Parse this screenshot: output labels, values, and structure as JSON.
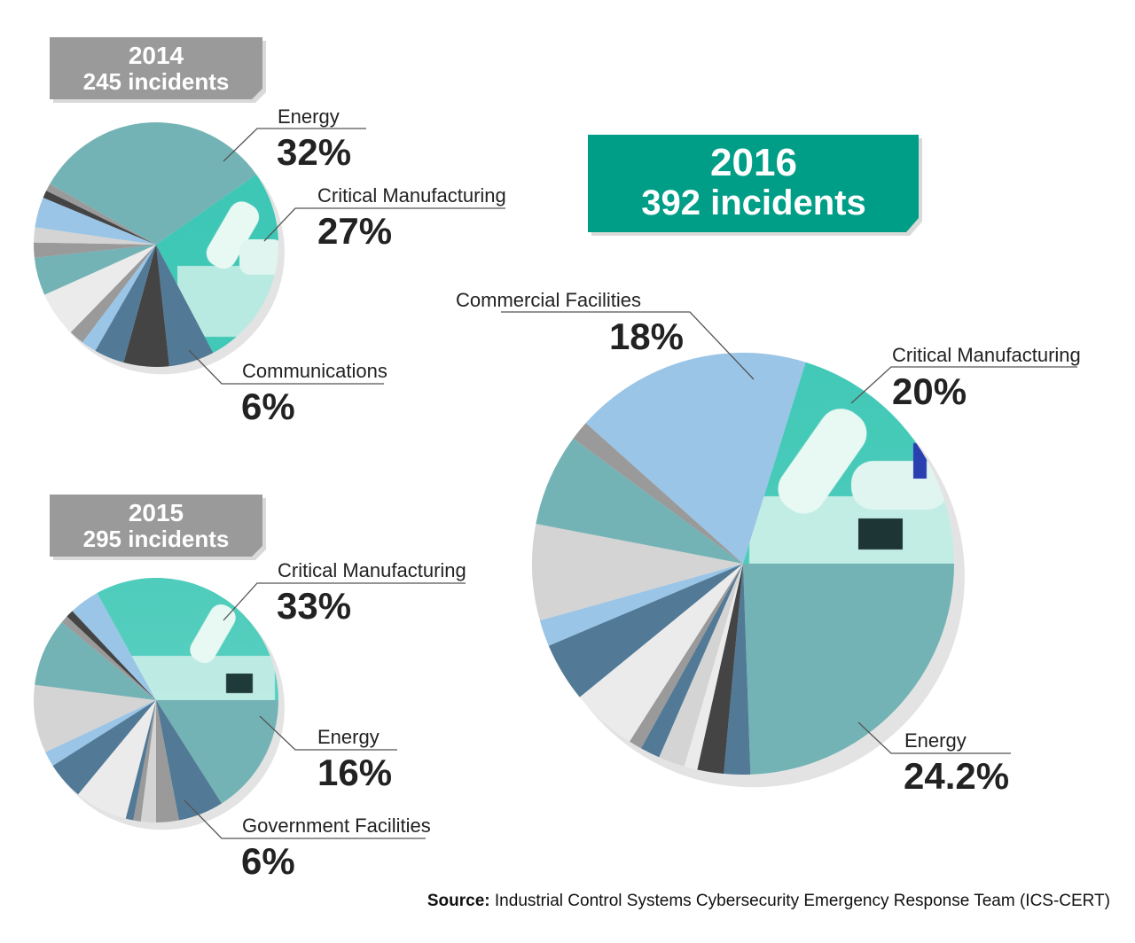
{
  "colors": {
    "teal": "#74b3b5",
    "lightblue": "#9ac5e6",
    "steelblue": "#527a96",
    "darkgray": "#444444",
    "gray": "#9a9a9a",
    "lightgray": "#d4d4d4",
    "offwhite": "#ebebeb",
    "image": "url(#robot)",
    "box2014": "#9a9a9a",
    "box2016": "#009e87"
  },
  "chart_data": [
    {
      "type": "pie",
      "title": "2014",
      "subtitle": "245 incidents",
      "slices": [
        {
          "label": "Critical Manufacturing",
          "value": 27,
          "display": "27%",
          "color": "image"
        },
        {
          "label": "Communications",
          "value": 6,
          "display": "6%",
          "color": "steelblue"
        },
        {
          "value": 6,
          "color": "darkgray"
        },
        {
          "value": 4,
          "color": "steelblue"
        },
        {
          "value": 2,
          "color": "lightblue"
        },
        {
          "value": 2,
          "color": "gray"
        },
        {
          "value": 6,
          "color": "offwhite"
        },
        {
          "value": 5,
          "color": "teal"
        },
        {
          "value": 2,
          "color": "gray"
        },
        {
          "value": 2,
          "color": "lightgray"
        },
        {
          "value": 4,
          "color": "lightblue"
        },
        {
          "value": 1,
          "color": "darkgray"
        },
        {
          "value": 1,
          "color": "gray"
        },
        {
          "label": "Energy",
          "value": 32,
          "display": "32%",
          "color": "teal"
        }
      ]
    },
    {
      "type": "pie",
      "title": "2015",
      "subtitle": "295 incidents",
      "slices": [
        {
          "label": "Energy",
          "value": 16,
          "display": "16%",
          "color": "teal"
        },
        {
          "label": "Government Facilities",
          "value": 6,
          "display": "6%",
          "color": "steelblue"
        },
        {
          "value": 3,
          "color": "gray"
        },
        {
          "value": 2,
          "color": "lightgray"
        },
        {
          "value": 1,
          "color": "gray"
        },
        {
          "value": 1,
          "color": "steelblue"
        },
        {
          "value": 7,
          "color": "offwhite"
        },
        {
          "value": 5,
          "color": "steelblue"
        },
        {
          "value": 2,
          "color": "lightblue"
        },
        {
          "value": 9,
          "color": "lightgray"
        },
        {
          "value": 9,
          "color": "teal"
        },
        {
          "value": 1,
          "color": "gray"
        },
        {
          "value": 1,
          "color": "darkgray"
        },
        {
          "value": 4,
          "color": "lightblue"
        },
        {
          "label": "Critical Manufacturing",
          "value": 33,
          "display": "33%",
          "color": "image"
        }
      ]
    },
    {
      "type": "pie",
      "title": "2016",
      "subtitle": "392 incidents",
      "slices": [
        {
          "label": "Energy",
          "value": 24.2,
          "display": "24.2%",
          "color": "teal"
        },
        {
          "value": 2,
          "color": "steelblue"
        },
        {
          "value": 2,
          "color": "darkgray"
        },
        {
          "value": 1,
          "color": "offwhite"
        },
        {
          "value": 2,
          "color": "lightgray"
        },
        {
          "value": 1.5,
          "color": "steelblue"
        },
        {
          "value": 1,
          "color": "gray"
        },
        {
          "value": 5,
          "color": "offwhite"
        },
        {
          "value": 4.5,
          "color": "steelblue"
        },
        {
          "value": 2,
          "color": "lightblue"
        },
        {
          "value": 7.3,
          "color": "lightgray"
        },
        {
          "value": 7,
          "color": "teal"
        },
        {
          "value": 1.5,
          "color": "gray"
        },
        {
          "label": "Commercial Facilities",
          "value": 18,
          "display": "18%",
          "color": "lightblue"
        },
        {
          "label": "Critical Manufacturing",
          "value": 20,
          "display": "20%",
          "color": "image"
        }
      ]
    }
  ],
  "source": {
    "prefix": "Source:",
    "text": "Industrial Control Systems Cybersecurity Emergency Response Team (ICS-CERT)"
  }
}
